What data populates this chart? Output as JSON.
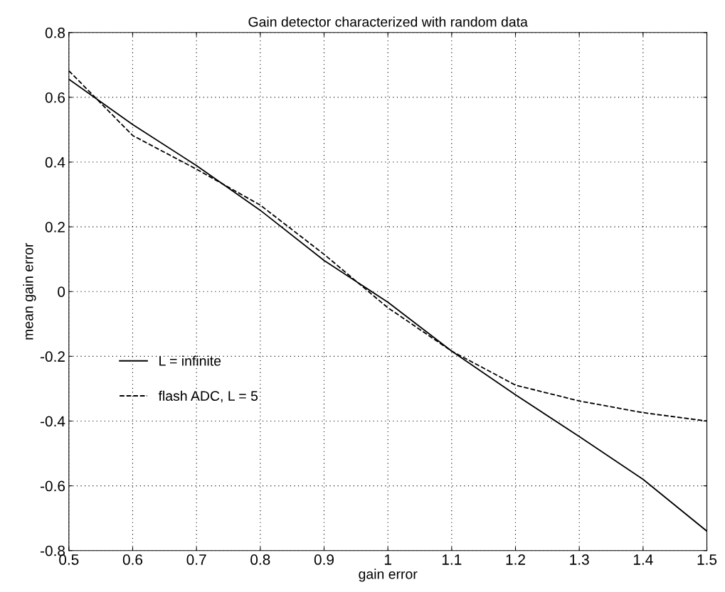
{
  "chart_data": {
    "type": "line",
    "title": "Gain detector characterized with random data",
    "xlabel": "gain error",
    "ylabel": "mean gain error",
    "x": [
      0.5,
      0.6,
      0.7,
      0.8,
      0.9,
      1.0,
      1.1,
      1.2,
      1.3,
      1.4,
      1.5
    ],
    "series": [
      {
        "name": "L = infinite",
        "color": "#000000",
        "line_style": "solid",
        "values": [
          0.656,
          0.516,
          0.389,
          0.251,
          0.096,
          -0.033,
          -0.184,
          -0.319,
          -0.448,
          -0.58,
          -0.74
        ]
      },
      {
        "name": "flash ADC, L = 5",
        "color": "#000000",
        "line_style": "dashed",
        "values": [
          0.682,
          0.482,
          0.378,
          0.267,
          0.115,
          -0.05,
          -0.184,
          -0.289,
          -0.338,
          -0.374,
          -0.4
        ]
      }
    ],
    "xlim": [
      0.5,
      1.5
    ],
    "ylim": [
      -0.8,
      0.8
    ],
    "xticks": [
      0.5,
      0.6,
      0.7,
      0.8,
      0.9,
      1,
      1.1,
      1.2,
      1.3,
      1.4,
      1.5
    ],
    "yticks": [
      -0.8,
      -0.6,
      -0.4,
      -0.2,
      0,
      0.2,
      0.4,
      0.6,
      0.8
    ],
    "grid": true,
    "legend": "left"
  }
}
